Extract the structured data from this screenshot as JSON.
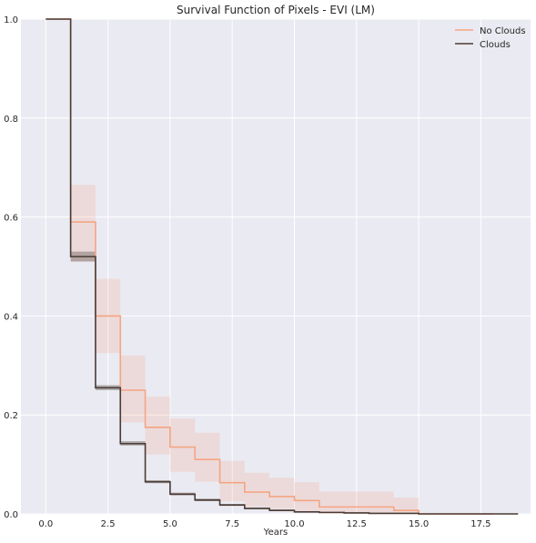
{
  "chart_data": {
    "type": "line",
    "subtype": "step-survival",
    "title": "Survival Function of Pixels - EVI (LM)",
    "xlabel": "Years",
    "ylabel": "",
    "xlim": [
      -1.0,
      19.5
    ],
    "ylim": [
      0.0,
      1.0
    ],
    "xticks": [
      0.0,
      2.5,
      5.0,
      7.5,
      10.0,
      12.5,
      15.0,
      17.5
    ],
    "xtick_labels": [
      "0.0",
      "2.5",
      "5.0",
      "7.5",
      "10.0",
      "12.5",
      "15.0",
      "17.5"
    ],
    "yticks": [
      0.0,
      0.2,
      0.4,
      0.6,
      0.8,
      1.0
    ],
    "ytick_labels": [
      "0.0",
      "0.2",
      "0.4",
      "0.6",
      "0.8",
      "1.0"
    ],
    "grid": true,
    "style": "seaborn-darkgrid",
    "legend_position": "top-right",
    "series": [
      {
        "name": "No Clouds",
        "color": "#f4a582",
        "x": [
          0,
          1,
          2,
          3,
          4,
          5,
          6,
          7,
          8,
          9,
          10,
          11,
          12,
          13,
          14,
          15,
          16,
          17,
          18
        ],
        "y": [
          1.0,
          0.59,
          0.4,
          0.25,
          0.175,
          0.135,
          0.11,
          0.063,
          0.044,
          0.035,
          0.027,
          0.014,
          0.014,
          0.014,
          0.007,
          0.0,
          0.0,
          0.0,
          0.0
        ],
        "ci_lower": [
          1.0,
          0.51,
          0.325,
          0.185,
          0.12,
          0.085,
          0.065,
          0.025,
          0.015,
          0.01,
          0.005,
          0.0,
          0.0,
          0.0,
          0.0,
          0.0,
          0.0,
          0.0,
          0.0
        ],
        "ci_upper": [
          1.0,
          0.665,
          0.475,
          0.32,
          0.237,
          0.193,
          0.164,
          0.107,
          0.083,
          0.073,
          0.064,
          0.045,
          0.045,
          0.045,
          0.033,
          0.0,
          0.0,
          0.0,
          0.0
        ]
      },
      {
        "name": "Clouds",
        "color": "#4a3b35",
        "x": [
          0,
          1,
          2,
          3,
          4,
          5,
          6,
          7,
          8,
          9,
          10,
          11,
          12,
          13,
          14,
          15,
          16,
          17,
          18,
          19
        ],
        "y": [
          1.0,
          0.52,
          0.255,
          0.142,
          0.065,
          0.04,
          0.028,
          0.018,
          0.011,
          0.007,
          0.004,
          0.003,
          0.002,
          0.001,
          0.001,
          0.0,
          0.0,
          0.0,
          0.0,
          0.0
        ],
        "ci_lower": [
          1.0,
          0.51,
          0.25,
          0.138,
          0.062,
          0.037,
          0.026,
          0.016,
          0.01,
          0.006,
          0.003,
          0.002,
          0.001,
          0.0,
          0.0,
          0.0,
          0.0,
          0.0,
          0.0,
          0.0
        ],
        "ci_upper": [
          1.0,
          0.53,
          0.26,
          0.147,
          0.068,
          0.043,
          0.031,
          0.02,
          0.013,
          0.009,
          0.005,
          0.004,
          0.003,
          0.002,
          0.002,
          0.0,
          0.0,
          0.0,
          0.0,
          0.0
        ]
      }
    ]
  },
  "colors": {
    "plot_background": "#eaeaf2",
    "grid": "#ffffff",
    "text": "#262626",
    "no_clouds_band": "#f4a582",
    "clouds_band": "#4a3b35"
  }
}
